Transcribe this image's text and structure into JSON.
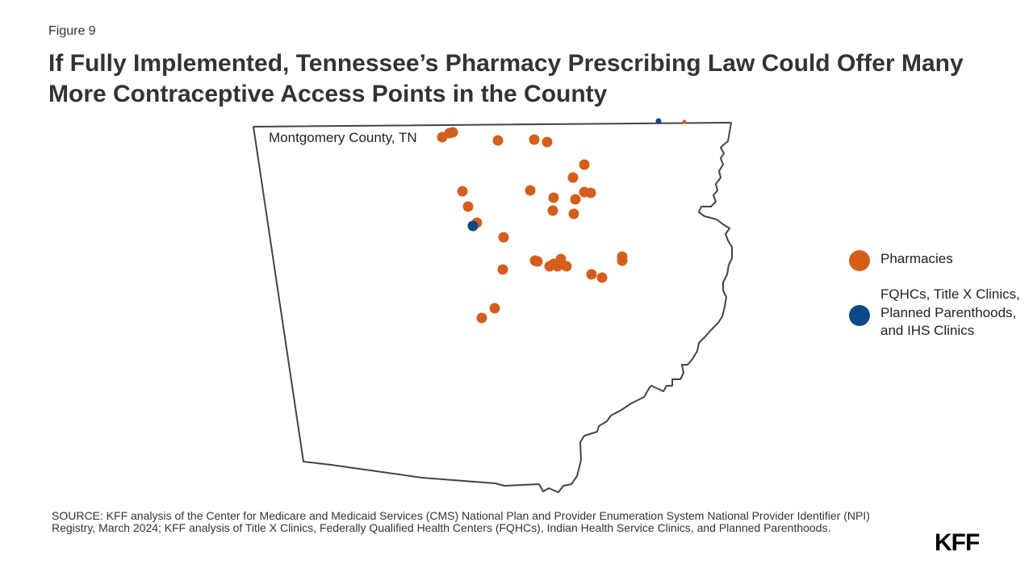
{
  "figure_label": "Figure 9",
  "title": "If Fully Implemented, Tennessee’s Pharmacy Prescribing Law Could Offer Many More Contraceptive Access Points in the County",
  "map": {
    "county_label": "Montgomery County, TN",
    "outline_color": "#444444",
    "pharmacy_color": "#d35f1b",
    "clinic_color": "#0b4a84"
  },
  "legend": {
    "items": [
      {
        "label": "Pharmacies",
        "color": "#d35f1b"
      },
      {
        "label": "FQHCs, Title X Clinics, Planned Parenthoods, and IHS Clinics",
        "color": "#0b4a84"
      }
    ]
  },
  "source": "SOURCE: KFF analysis of the Center for Medicare and Medicaid Services (CMS) National Plan and Provider Enumeration System National Provider Identifier (NPI) Registry, March 2024; KFF analysis of Title X Clinics, Federally Qualified Health Centers (FQHCs), Indian Health Service Clinics, and Planned Parenthoods.",
  "logo": "KFF"
}
